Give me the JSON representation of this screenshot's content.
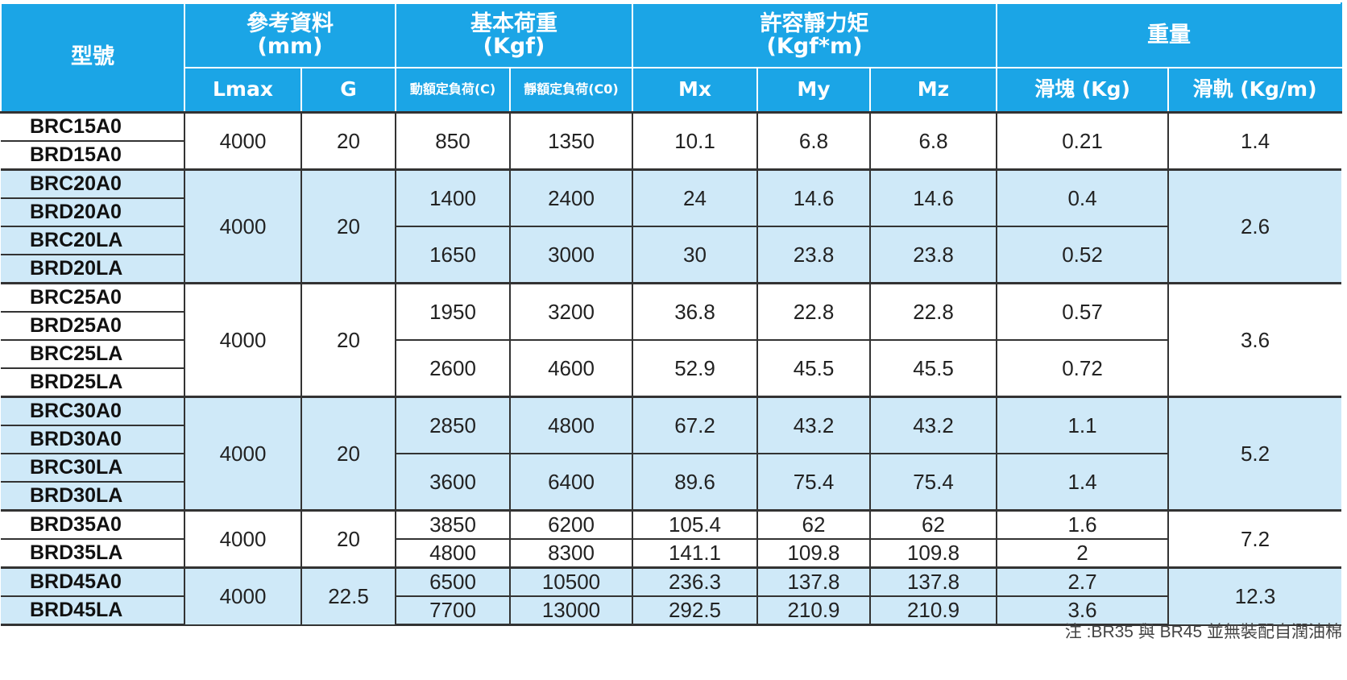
{
  "headers": {
    "model": "型號",
    "ref_title": "參考資料",
    "ref_unit": "(mm)",
    "load_title": "基本荷重",
    "load_unit": "(Kgf)",
    "moment_title": "許容靜力矩",
    "moment_unit": "(Kgf*m)",
    "weight_title": "重量",
    "lmax": "Lmax",
    "g": "G",
    "dynamic_load": "動額定負荷(C)",
    "static_load": "靜額定負荷(C0)",
    "mx": "Mx",
    "my": "My",
    "mz": "Mz",
    "block_weight": "滑塊 (Kg)",
    "rail_weight": "滑軌 (Kg/m)"
  },
  "groups": [
    {
      "lmax": "4000",
      "g": "20",
      "rail": "1.4",
      "subgroups": [
        {
          "models": [
            "BRC15A0",
            "BRD15A0"
          ],
          "c": "850",
          "c0": "1350",
          "mx": "10.1",
          "my": "6.8",
          "mz": "6.8",
          "block": "0.21"
        }
      ]
    },
    {
      "lmax": "4000",
      "g": "20",
      "rail": "2.6",
      "subgroups": [
        {
          "models": [
            "BRC20A0",
            "BRD20A0"
          ],
          "c": "1400",
          "c0": "2400",
          "mx": "24",
          "my": "14.6",
          "mz": "14.6",
          "block": "0.4"
        },
        {
          "models": [
            "BRC20LA",
            "BRD20LA"
          ],
          "c": "1650",
          "c0": "3000",
          "mx": "30",
          "my": "23.8",
          "mz": "23.8",
          "block": "0.52"
        }
      ]
    },
    {
      "lmax": "4000",
      "g": "20",
      "rail": "3.6",
      "subgroups": [
        {
          "models": [
            "BRC25A0",
            "BRD25A0"
          ],
          "c": "1950",
          "c0": "3200",
          "mx": "36.8",
          "my": "22.8",
          "mz": "22.8",
          "block": "0.57"
        },
        {
          "models": [
            "BRC25LA",
            "BRD25LA"
          ],
          "c": "2600",
          "c0": "4600",
          "mx": "52.9",
          "my": "45.5",
          "mz": "45.5",
          "block": "0.72"
        }
      ]
    },
    {
      "lmax": "4000",
      "g": "20",
      "rail": "5.2",
      "subgroups": [
        {
          "models": [
            "BRC30A0",
            "BRD30A0"
          ],
          "c": "2850",
          "c0": "4800",
          "mx": "67.2",
          "my": "43.2",
          "mz": "43.2",
          "block": "1.1"
        },
        {
          "models": [
            "BRC30LA",
            "BRD30LA"
          ],
          "c": "3600",
          "c0": "6400",
          "mx": "89.6",
          "my": "75.4",
          "mz": "75.4",
          "block": "1.4"
        }
      ]
    },
    {
      "lmax": "4000",
      "g": "20",
      "rail": "7.2",
      "subgroups": [
        {
          "models": [
            "BRD35A0"
          ],
          "c": "3850",
          "c0": "6200",
          "mx": "105.4",
          "my": "62",
          "mz": "62",
          "block": "1.6"
        },
        {
          "models": [
            "BRD35LA"
          ],
          "c": "4800",
          "c0": "8300",
          "mx": "141.1",
          "my": "109.8",
          "mz": "109.8",
          "block": "2"
        }
      ]
    },
    {
      "lmax": "4000",
      "g": "22.5",
      "rail": "12.3",
      "subgroups": [
        {
          "models": [
            "BRD45A0"
          ],
          "c": "6500",
          "c0": "10500",
          "mx": "236.3",
          "my": "137.8",
          "mz": "137.8",
          "block": "2.7"
        },
        {
          "models": [
            "BRD45LA"
          ],
          "c": "7700",
          "c0": "13000",
          "mx": "292.5",
          "my": "210.9",
          "mz": "210.9",
          "block": "3.6"
        }
      ]
    }
  ],
  "note": "注 :BR35 與 BR45 並無裝配自潤油棉",
  "colors": {
    "header_bg": "#1ba5e6",
    "band_blue": "#cfe9f8",
    "band_white": "#ffffff"
  }
}
